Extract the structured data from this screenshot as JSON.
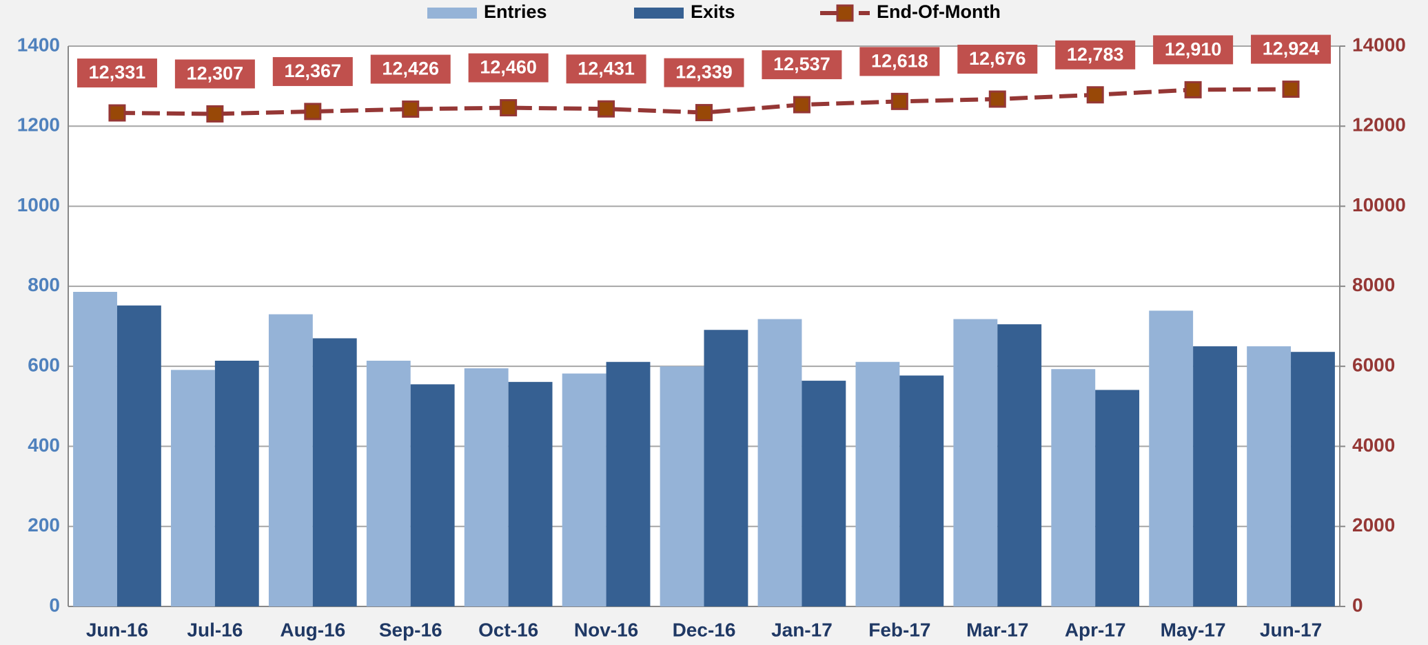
{
  "chart_data": {
    "type": "bar_line",
    "categories": [
      "Jun-16",
      "Jul-16",
      "Aug-16",
      "Sep-16",
      "Oct-16",
      "Nov-16",
      "Dec-16",
      "Jan-17",
      "Feb-17",
      "Mar-17",
      "Apr-17",
      "May-17",
      "Jun-17"
    ],
    "series": [
      {
        "name": "Entries",
        "color": "#95b3d7",
        "type": "bar",
        "values": [
          786,
          591,
          730,
          614,
          595,
          582,
          600,
          718,
          611,
          718,
          593,
          739,
          650
        ]
      },
      {
        "name": "Exits",
        "color": "#366092",
        "type": "bar",
        "values": [
          752,
          614,
          670,
          555,
          561,
          611,
          691,
          564,
          577,
          705,
          541,
          650,
          636
        ]
      },
      {
        "name": "End-Of-Month",
        "color": "#953735",
        "type": "line",
        "axis": "y2",
        "values": [
          12331,
          12307,
          12367,
          12426,
          12460,
          12431,
          12339,
          12537,
          12618,
          12676,
          12783,
          12910,
          12924
        ],
        "value_labels": [
          "12,331",
          "12,307",
          "12,367",
          "12,426",
          "12,460",
          "12,431",
          "12,339",
          "12,537",
          "12,618",
          "12,676",
          "12,783",
          "12,910",
          "12,924"
        ]
      }
    ],
    "ylim": [
      0,
      1400
    ],
    "yticks": [
      0,
      200,
      400,
      600,
      800,
      1000,
      1200,
      1400
    ],
    "y2lim": [
      0,
      14000
    ],
    "y2ticks": [
      0,
      2000,
      4000,
      6000,
      8000,
      10000,
      12000,
      14000
    ],
    "grid": true,
    "legend": "top"
  }
}
